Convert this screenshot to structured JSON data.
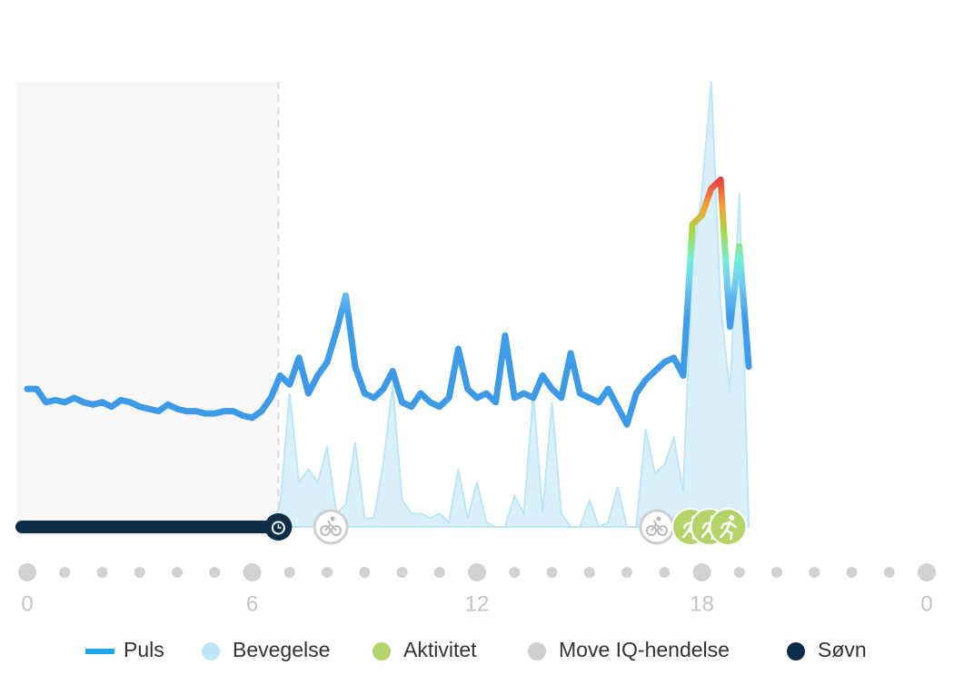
{
  "chart_data": {
    "type": "line",
    "x": [
      0,
      0.25,
      0.5,
      0.75,
      1,
      1.25,
      1.5,
      1.75,
      2,
      2.25,
      2.5,
      2.75,
      3,
      3.25,
      3.5,
      3.75,
      4,
      4.25,
      4.5,
      4.75,
      5,
      5.25,
      5.5,
      5.75,
      6,
      6.25,
      6.5,
      6.75,
      7,
      7.25,
      7.5,
      7.75,
      8,
      8.25,
      8.5,
      8.75,
      9,
      9.25,
      9.5,
      9.75,
      10,
      10.25,
      10.5,
      10.75,
      11,
      11.25,
      11.5,
      11.75,
      12,
      12.25,
      12.5,
      12.75,
      13,
      13.25,
      13.5,
      13.75,
      14,
      14.25,
      14.5,
      14.75,
      15,
      15.25,
      15.5,
      15.75,
      16,
      16.25,
      16.5,
      16.75,
      17,
      17.25,
      17.5,
      17.75,
      18,
      18.25,
      18.5,
      18.75,
      19,
      19.25
    ],
    "xlim": [
      0,
      24
    ],
    "xticks": [
      0,
      6,
      12,
      18,
      {
        "value": 24,
        "label": "0"
      }
    ],
    "ylim": [
      0,
      100
    ],
    "series": [
      {
        "name": "Puls",
        "color": "#3a97e6",
        "values": [
          31,
          31,
          28,
          28.5,
          28,
          29,
          28,
          27.5,
          28,
          27,
          28.5,
          28,
          27,
          26.5,
          26,
          27.5,
          26.5,
          26,
          26,
          25.5,
          25.5,
          26,
          26,
          25,
          24.5,
          26,
          29,
          34,
          32,
          38,
          30,
          34,
          37,
          44,
          52,
          36,
          30,
          29,
          31,
          35,
          28,
          27,
          30,
          28,
          27,
          29,
          40,
          31,
          29,
          30,
          28,
          43,
          29,
          30,
          29,
          34,
          31,
          29,
          39,
          30,
          29,
          28,
          31,
          27,
          23,
          30,
          33,
          35,
          37,
          38,
          34,
          68,
          70,
          76,
          78,
          45,
          63,
          36
        ]
      },
      {
        "name": "Bevegelse",
        "color": "#bfe6f6",
        "values": [
          0,
          0,
          0,
          0,
          0,
          0,
          0,
          0,
          0,
          0,
          0,
          0,
          0,
          0,
          0,
          0,
          0,
          0,
          0,
          0,
          0,
          0,
          0,
          0,
          0,
          0,
          0,
          5,
          30,
          10,
          13,
          10,
          18,
          3,
          5,
          19,
          2,
          2,
          14,
          32,
          6,
          3,
          3,
          2,
          3,
          1,
          13,
          2,
          10,
          1,
          0,
          0,
          7,
          3,
          30,
          3,
          28,
          3,
          0,
          0,
          6,
          0,
          1,
          9,
          0,
          0,
          22,
          12,
          14,
          20,
          8,
          60,
          75,
          100,
          50,
          30,
          75,
          0
        ]
      }
    ],
    "events": [
      {
        "name": "Aktivitet",
        "color": "#b4d46a",
        "times": [
          17.7,
          18.2,
          18.7
        ]
      },
      {
        "name": "Move IQ-hendelse",
        "color": "#cfcfcf",
        "times": [
          8.1,
          16.8
        ]
      },
      {
        "name": "Søvn",
        "color": "#0f2d46",
        "start": 0,
        "end": 6.7
      }
    ]
  }
}
